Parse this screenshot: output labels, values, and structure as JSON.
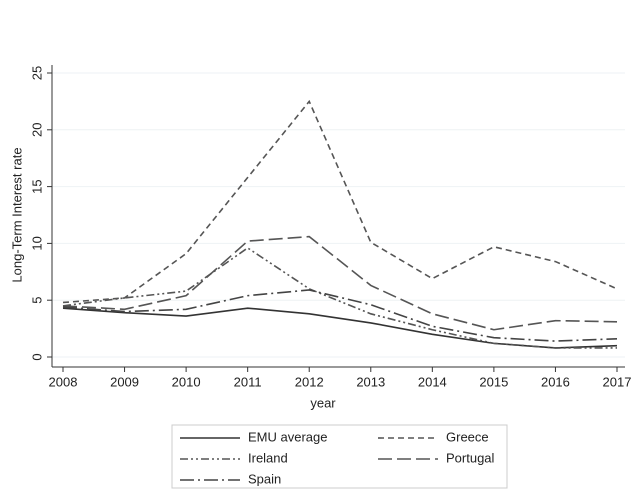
{
  "chart_data": {
    "type": "line",
    "x_label": "year",
    "y_label": "Long-Term Interest rate",
    "x": [
      2008,
      2009,
      2010,
      2011,
      2012,
      2013,
      2014,
      2015,
      2016,
      2017
    ],
    "xlim": [
      2008,
      2017
    ],
    "xticks": [
      2008,
      2009,
      2010,
      2011,
      2012,
      2013,
      2014,
      2015,
      2016,
      2017
    ],
    "ylim": [
      0,
      25
    ],
    "yticks": [
      0,
      5,
      10,
      15,
      20,
      25
    ],
    "grid": true,
    "series": [
      {
        "name": "EMU average",
        "color": "#333333",
        "dash": "none",
        "values": [
          4.3,
          3.9,
          3.6,
          4.3,
          3.8,
          3.0,
          2.0,
          1.2,
          0.8,
          1.0
        ]
      },
      {
        "name": "Greece",
        "color": "#555555",
        "dash": "6,4",
        "values": [
          4.8,
          5.2,
          9.1,
          15.8,
          22.5,
          10.1,
          6.9,
          9.7,
          8.4,
          6.0
        ]
      },
      {
        "name": "Ireland",
        "color": "#555555",
        "dash": "8,3,2,3,2,3",
        "values": [
          4.5,
          5.2,
          5.8,
          9.6,
          6.0,
          3.8,
          2.4,
          1.2,
          0.8,
          0.8
        ]
      },
      {
        "name": "Portugal",
        "color": "#555555",
        "dash": "14,5",
        "values": [
          4.5,
          4.2,
          5.4,
          10.2,
          10.6,
          6.3,
          3.8,
          2.4,
          3.2,
          3.1
        ]
      },
      {
        "name": "Spain",
        "color": "#444444",
        "dash": "14,4,2,4",
        "values": [
          4.4,
          4.0,
          4.2,
          5.4,
          5.9,
          4.6,
          2.7,
          1.7,
          1.4,
          1.6
        ]
      }
    ]
  }
}
